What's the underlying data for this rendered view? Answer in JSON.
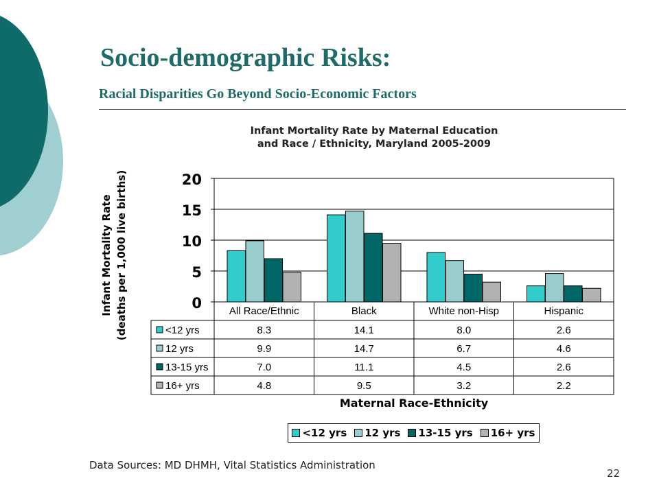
{
  "slide": {
    "title": "Socio-demographic Risks:",
    "subtitle": "Racial Disparities Go Beyond Socio-Economic Factors",
    "source": "Data Sources: MD DHMH, Vital Statistics Administration",
    "page_number": "22",
    "colors": {
      "title": "#1f6b67",
      "decor_dark": "#0e6b67",
      "decor_light": "#9fcfd0"
    }
  },
  "chart_data": {
    "type": "bar",
    "title_lines": [
      "Infant Mortality Rate by Maternal Education",
      "and Race / Ethnicity, Maryland 2005-2009"
    ],
    "xlabel": "Maternal Race-Ethnicity",
    "ylabel_lines": [
      "Infant Mortality Rate",
      "(deaths per 1,000 live births)"
    ],
    "categories": [
      "All Race/Ethnic",
      "Black",
      "White non-Hisp",
      "Hispanic"
    ],
    "series": [
      {
        "name": "<12 yrs",
        "values": [
          8.3,
          14.1,
          8.0,
          2.6
        ],
        "labels": [
          "8.3",
          "14.1",
          "8.0",
          "2.6"
        ],
        "color": "#33cccc"
      },
      {
        "name": "12 yrs",
        "values": [
          9.9,
          14.7,
          6.7,
          4.6
        ],
        "labels": [
          "9.9",
          "14.7",
          "6.7",
          "4.6"
        ],
        "color": "#99cccc"
      },
      {
        "name": "13-15 yrs",
        "values": [
          7.0,
          11.1,
          4.5,
          2.6
        ],
        "labels": [
          "7.0",
          "11.1",
          "4.5",
          "2.6"
        ],
        "color": "#006666"
      },
      {
        "name": "16+ yrs",
        "values": [
          4.8,
          9.5,
          3.2,
          2.2
        ],
        "labels": [
          "4.8",
          "9.5",
          "3.2",
          "2.2"
        ],
        "color": "#b2b2b2"
      }
    ],
    "ylim": [
      0,
      20
    ],
    "yticks": [
      "0",
      "5",
      "10",
      "15",
      "20"
    ],
    "grid": true,
    "data_table": true,
    "legend_position": "bottom"
  }
}
